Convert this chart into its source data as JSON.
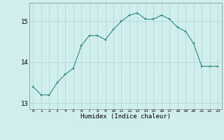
{
  "x": [
    0,
    1,
    2,
    3,
    4,
    5,
    6,
    7,
    8,
    9,
    10,
    11,
    12,
    13,
    14,
    15,
    16,
    17,
    18,
    19,
    20,
    21,
    22,
    23
  ],
  "y": [
    13.4,
    13.2,
    13.2,
    13.5,
    13.7,
    13.85,
    14.4,
    14.65,
    14.65,
    14.55,
    14.8,
    15.0,
    15.15,
    15.2,
    15.05,
    15.05,
    15.15,
    15.05,
    14.85,
    14.75,
    14.45,
    13.9,
    13.9,
    13.9
  ],
  "xlabel": "Humidex (Indice chaleur)",
  "yticks": [
    13,
    14,
    15
  ],
  "xticks": [
    0,
    1,
    2,
    3,
    4,
    5,
    6,
    7,
    8,
    9,
    10,
    11,
    12,
    13,
    14,
    15,
    16,
    17,
    18,
    19,
    20,
    21,
    22,
    23
  ],
  "line_color": "#2e8b7a",
  "marker_color": "#2e8b7a",
  "bg_color": "#d0eeee",
  "grid_color": "#aed4d4",
  "ylim": [
    12.85,
    15.45
  ],
  "xlim": [
    -0.5,
    23.5
  ]
}
